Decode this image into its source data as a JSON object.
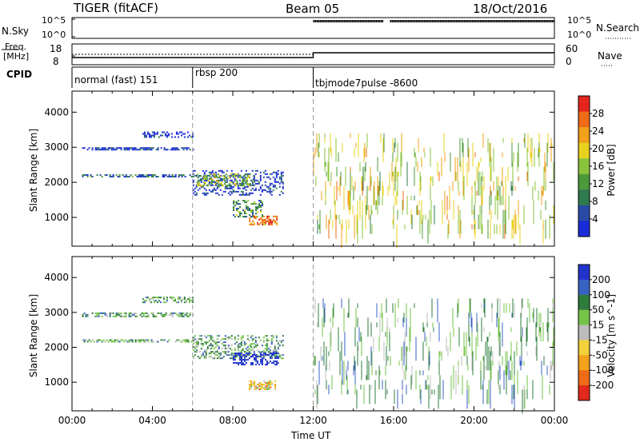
{
  "header": {
    "title": "TIGER (fitACF)",
    "beam": "Beam 05",
    "date": "18/Oct/2016"
  },
  "nsky_panel": {
    "label": "N.Sky",
    "left_top": "10^5",
    "left_bottom": "10^0",
    "right_top": "10^5",
    "right_bottom": "10^0",
    "right_label": "N.Search"
  },
  "freq_panel": {
    "label_line1": "Freq.",
    "label_line2": "[MHz]",
    "left_top": "18",
    "left_bottom": "8",
    "right_top": "60",
    "right_bottom": "0",
    "right_label": "Nave"
  },
  "cpid": {
    "label": "CPID",
    "modes": [
      "normal (fast) 151",
      "rbsp 200",
      "tbjmode7pulse -8600"
    ]
  },
  "colors": {
    "power": [
      "#1a2bd9",
      "#2a4aa8",
      "#2f7a4f",
      "#4c9a3b",
      "#8ac43a",
      "#e8d21f",
      "#f3a01a",
      "#ef6b17",
      "#e3261b"
    ],
    "velocity": [
      "#2233cc",
      "#3a62c4",
      "#2e7c3c",
      "#76c34a",
      "#bcbcbc",
      "#f2d23a",
      "#f4a21c",
      "#ee6a18",
      "#e3281c"
    ]
  },
  "chart_data": [
    {
      "type": "heatmap",
      "name": "power",
      "ylabel": "Slant Range [km]",
      "yticks": [
        1000,
        2000,
        3000,
        4000
      ],
      "ylim": [
        180,
        4600
      ],
      "colorbar_label": "Power [dB]",
      "colorbar_ticks": [
        4,
        8,
        12,
        16,
        20,
        24,
        28
      ],
      "colorbar_range": [
        0,
        32
      ],
      "echo_regions": [
        {
          "t0": 0.5,
          "t1": 6.0,
          "r0": 2950,
          "r1": 3000,
          "value": 4,
          "density": 0.7
        },
        {
          "t0": 3.5,
          "t1": 6.0,
          "r0": 3300,
          "r1": 3450,
          "value": 4,
          "density": 0.45
        },
        {
          "t0": 0.5,
          "t1": 6.0,
          "r0": 2150,
          "r1": 2230,
          "value": 8,
          "density": 0.55
        },
        {
          "t0": 6.0,
          "t1": 10.5,
          "r0": 1650,
          "r1": 2350,
          "value": 4,
          "density": 0.35
        },
        {
          "t0": 6.2,
          "t1": 9.0,
          "r0": 1900,
          "r1": 2250,
          "value": 16,
          "density": 0.5
        },
        {
          "t0": 8.8,
          "t1": 10.2,
          "r0": 800,
          "r1": 1050,
          "value": 28,
          "density": 0.55
        },
        {
          "t0": 8.0,
          "t1": 9.5,
          "r0": 1000,
          "r1": 1500,
          "value": 12,
          "density": 0.4
        },
        {
          "t0": 12.0,
          "t1": 24.0,
          "r0": 700,
          "r1": 3400,
          "value": 20,
          "density": 0.05
        }
      ]
    },
    {
      "type": "heatmap",
      "name": "velocity",
      "ylabel": "Slant Range [km]",
      "yticks": [
        1000,
        2000,
        3000,
        4000
      ],
      "ylim": [
        180,
        4600
      ],
      "colorbar_label": "Velocity [m s^-1]",
      "colorbar_ticks": [
        200,
        100,
        50,
        15,
        -15,
        -50,
        -100,
        -200
      ],
      "echo_regions": [
        {
          "t0": 0.5,
          "t1": 6.0,
          "r0": 2900,
          "r1": 3000,
          "value": 0,
          "density": 0.5
        },
        {
          "t0": 3.5,
          "t1": 6.0,
          "r0": 3300,
          "r1": 3450,
          "value": 0,
          "density": 0.4
        },
        {
          "t0": 0.5,
          "t1": 6.0,
          "r0": 2150,
          "r1": 2230,
          "value": 0,
          "density": 0.5
        },
        {
          "t0": 6.0,
          "t1": 10.5,
          "r0": 1700,
          "r1": 2350,
          "value": 0,
          "density": 0.4
        },
        {
          "t0": 8.0,
          "t1": 10.3,
          "r0": 1500,
          "r1": 1850,
          "value": 200,
          "density": 0.5
        },
        {
          "t0": 8.8,
          "t1": 10.2,
          "r0": 800,
          "r1": 1050,
          "value": -100,
          "density": 0.55
        },
        {
          "t0": 12.0,
          "t1": 24.0,
          "r0": 700,
          "r1": 3400,
          "value": 0,
          "density": 0.05
        }
      ]
    }
  ],
  "x_axis": {
    "label": "Time UT",
    "ticks": [
      "00:00",
      "04:00",
      "08:00",
      "12:00",
      "16:00",
      "20:00",
      "00:00"
    ],
    "xlim_hours": [
      0,
      24
    ],
    "mode_change_hours": [
      6.0,
      12.0
    ]
  }
}
